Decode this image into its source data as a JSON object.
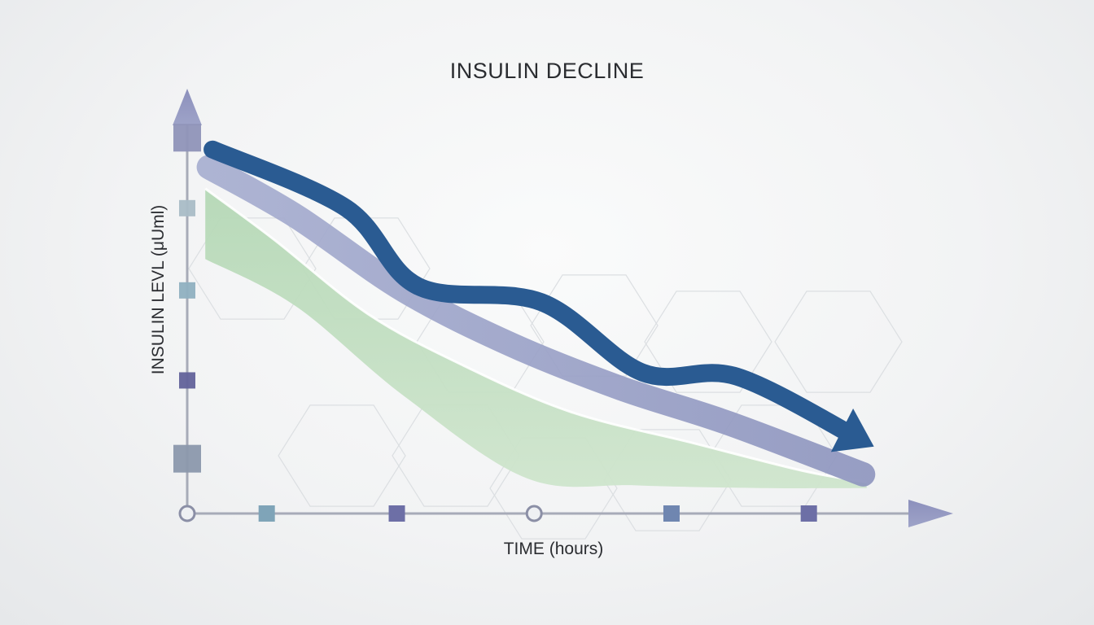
{
  "chart_data": {
    "type": "area",
    "title": "INSULIN DECLINE",
    "xlabel": "TIME (hours)",
    "ylabel": "INSULIN LEVL (μUml)",
    "x_range": [
      0,
      10
    ],
    "y_range": [
      0,
      10
    ],
    "grid": false,
    "legend": "none",
    "series": [
      {
        "style": "area",
        "color": "#b9d9b9",
        "upper": [
          [
            0.25,
            8.3
          ],
          [
            1.2,
            7.0
          ],
          [
            2.5,
            5.1
          ],
          [
            3.8,
            3.8
          ],
          [
            5.3,
            2.6
          ],
          [
            7.0,
            1.8
          ],
          [
            8.5,
            1.1
          ],
          [
            9.4,
            0.8
          ]
        ],
        "lower": [
          [
            0.25,
            6.5
          ],
          [
            1.5,
            5.3
          ],
          [
            3.0,
            3.0
          ],
          [
            4.7,
            0.9
          ],
          [
            6.2,
            0.72
          ],
          [
            8.0,
            0.65
          ],
          [
            9.4,
            0.65
          ]
        ]
      },
      {
        "style": "band",
        "color": "#9fa6c9",
        "values": [
          [
            0.3,
            8.85
          ],
          [
            1.5,
            7.6
          ],
          [
            3.0,
            5.7
          ],
          [
            4.5,
            4.3
          ],
          [
            6.0,
            3.2
          ],
          [
            7.5,
            2.3
          ],
          [
            9.35,
            1.0
          ]
        ]
      },
      {
        "style": "arrow",
        "color": "#2a5b92",
        "values": [
          [
            0.35,
            9.3
          ],
          [
            2.2,
            7.8
          ],
          [
            3.2,
            5.8
          ],
          [
            4.9,
            5.4
          ],
          [
            6.3,
            3.6
          ],
          [
            7.6,
            3.5
          ],
          [
            9.3,
            1.9
          ]
        ]
      }
    ],
    "x_markers": [
      {
        "x": 0,
        "shape": "circle"
      },
      {
        "x": 1.1,
        "shape": "square",
        "color": "#7fa4b8"
      },
      {
        "x": 2.9,
        "shape": "square",
        "color": "#6d6fa6"
      },
      {
        "x": 4.8,
        "shape": "circle"
      },
      {
        "x": 6.7,
        "shape": "square",
        "color": "#6f86b0"
      },
      {
        "x": 8.6,
        "shape": "square",
        "color": "#6d6fa6"
      }
    ],
    "y_markers": [
      {
        "y": 9.6,
        "shape": "square-large",
        "color": "#8f94b8"
      },
      {
        "y": 7.8,
        "shape": "square",
        "color": "#a9bcc6"
      },
      {
        "y": 5.7,
        "shape": "square",
        "color": "#8fb0c0"
      },
      {
        "y": 3.4,
        "shape": "square",
        "color": "#62629a"
      },
      {
        "y": 1.4,
        "shape": "square-large",
        "color": "#8b98ac"
      }
    ]
  }
}
